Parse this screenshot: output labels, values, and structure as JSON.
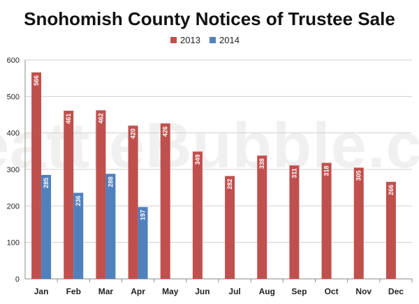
{
  "watermark_text": "SeattleBubble.com",
  "chart_data": {
    "type": "bar",
    "title": "Snohomish County Notices of Trustee Sale",
    "categories": [
      "Jan",
      "Feb",
      "Mar",
      "Apr",
      "May",
      "Jun",
      "Jul",
      "Aug",
      "Sep",
      "Oct",
      "Nov",
      "Dec"
    ],
    "series": [
      {
        "name": "2013",
        "color": "#c0504d",
        "values": [
          566,
          461,
          462,
          420,
          426,
          349,
          282,
          338,
          311,
          318,
          305,
          266
        ]
      },
      {
        "name": "2014",
        "color": "#4f81bd",
        "values": [
          285,
          236,
          288,
          197,
          null,
          null,
          null,
          null,
          null,
          null,
          null,
          null
        ]
      }
    ],
    "ylim": [
      0,
      600
    ],
    "yticks": [
      0,
      100,
      200,
      300,
      400,
      500,
      600
    ],
    "grid": true,
    "legend": "top-center",
    "xlabel": "",
    "ylabel": ""
  }
}
